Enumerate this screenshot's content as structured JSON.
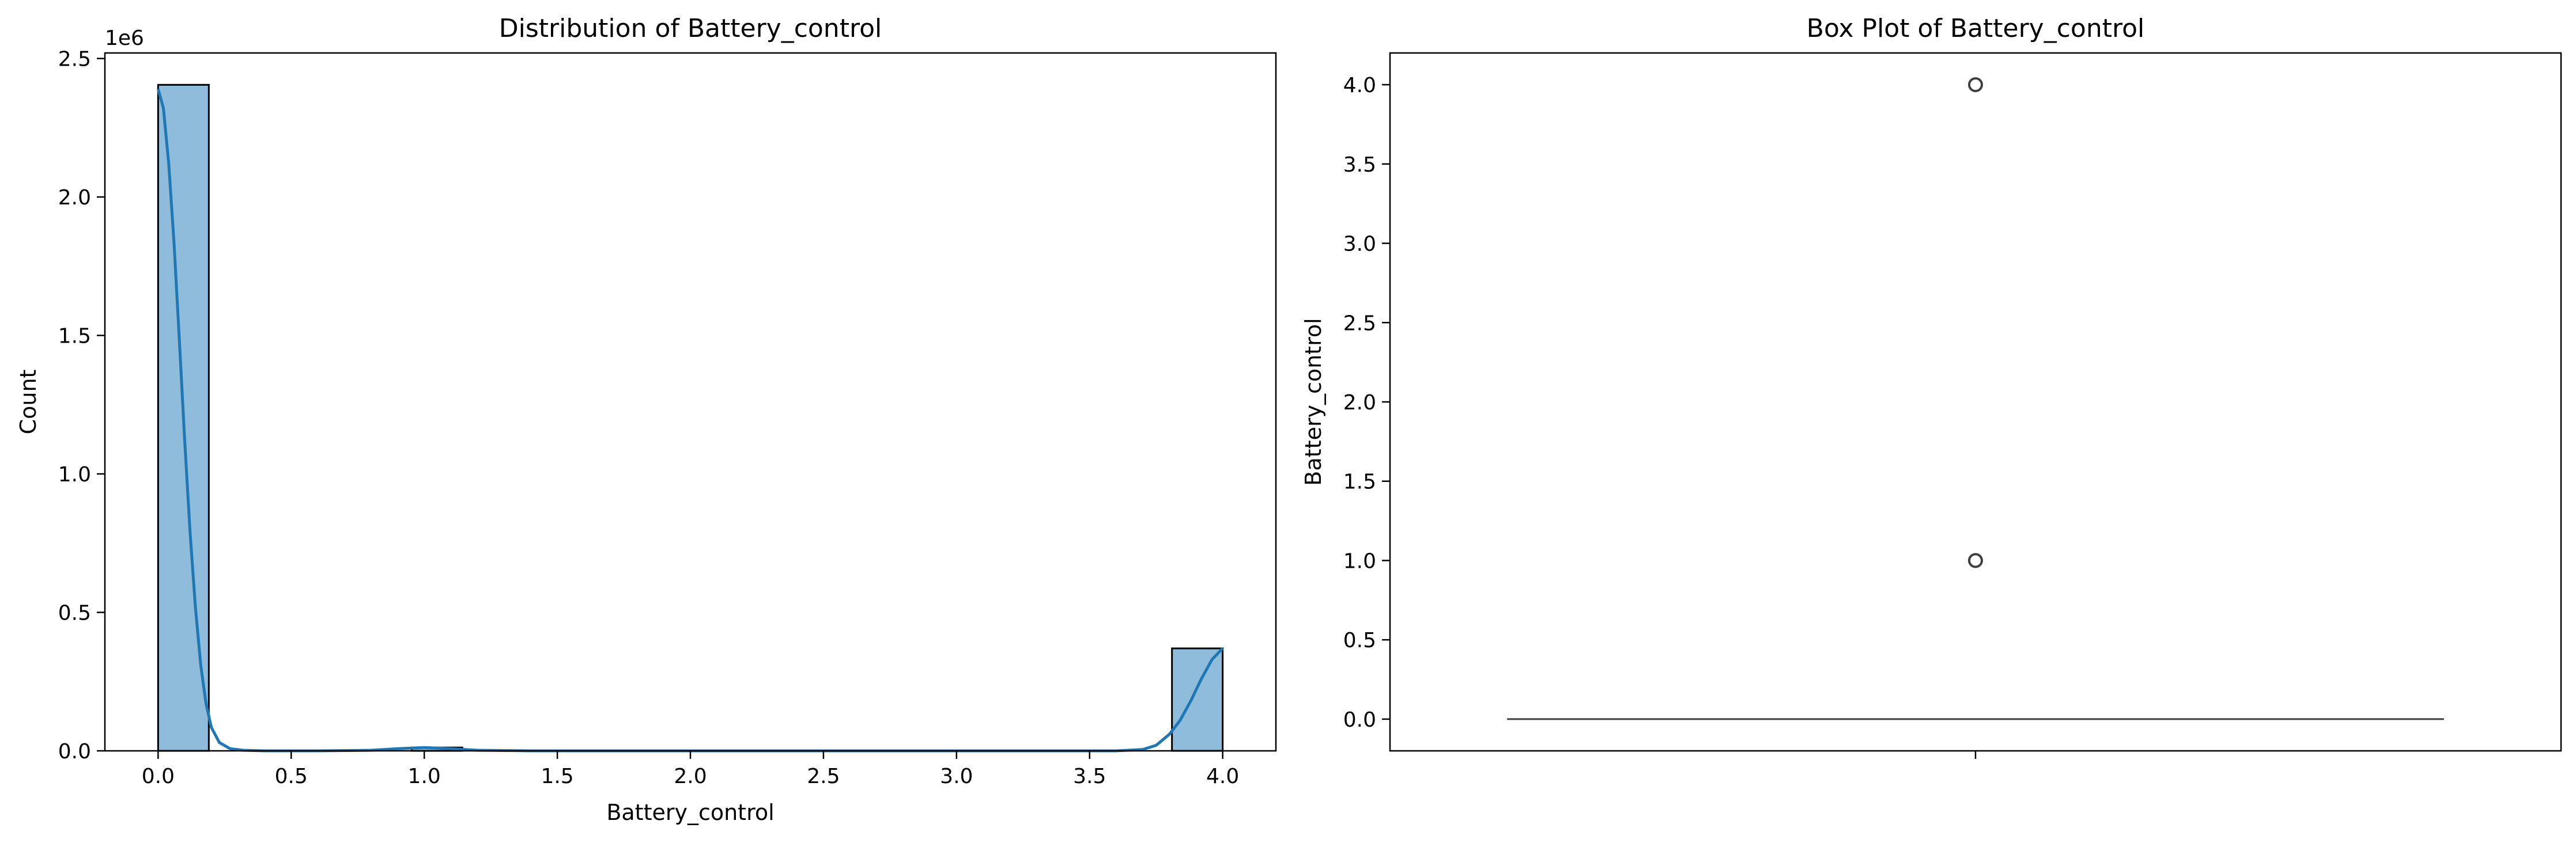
{
  "chart_data": [
    {
      "type": "histogram",
      "title": "Distribution of Battery_control",
      "xlabel": "Battery_control",
      "ylabel": "Count",
      "y_offset_label": "1e6",
      "xlim": [
        -0.2,
        4.2
      ],
      "ylim": [
        0,
        2.52
      ],
      "x_ticks": [
        0.0,
        0.5,
        1.0,
        1.5,
        2.0,
        2.5,
        3.0,
        3.5,
        4.0
      ],
      "x_tick_labels": [
        "0.0",
        "0.5",
        "1.0",
        "1.5",
        "2.0",
        "2.5",
        "3.0",
        "3.5",
        "4.0"
      ],
      "y_ticks": [
        0.0,
        0.5,
        1.0,
        1.5,
        2.0,
        2.5
      ],
      "y_tick_labels": [
        "0.0",
        "0.5",
        "1.0",
        "1.5",
        "2.0",
        "2.5"
      ],
      "bin_width": 0.1905,
      "bins": [
        {
          "x0": 0.0,
          "x1": 0.1905,
          "count": 2.405
        },
        {
          "x0": 0.9524,
          "x1": 1.1429,
          "count": 0.012
        },
        {
          "x0": 3.8095,
          "x1": 4.0,
          "count": 0.37
        }
      ],
      "bar_color": "#8fbcdb",
      "kde_color": "#1f77b4",
      "kde": {
        "x": [
          0.0,
          0.02,
          0.04,
          0.06,
          0.08,
          0.1,
          0.12,
          0.14,
          0.16,
          0.18,
          0.2,
          0.23,
          0.27,
          0.32,
          0.4,
          0.6,
          0.8,
          0.9,
          1.0,
          1.1,
          1.2,
          1.4,
          2.0,
          3.0,
          3.6,
          3.7,
          3.75,
          3.8,
          3.84,
          3.88,
          3.92,
          3.96,
          4.0
        ],
        "y": [
          2.39,
          2.32,
          2.12,
          1.83,
          1.48,
          1.12,
          0.79,
          0.52,
          0.31,
          0.17,
          0.085,
          0.03,
          0.008,
          0.002,
          0.0,
          0.0,
          0.002,
          0.008,
          0.012,
          0.008,
          0.002,
          0.0,
          0.0,
          0.0,
          0.0,
          0.005,
          0.02,
          0.06,
          0.11,
          0.18,
          0.26,
          0.33,
          0.37
        ]
      }
    },
    {
      "type": "box",
      "title": "Box Plot of Battery_control",
      "xlabel": "",
      "ylabel": "Battery_control",
      "ylim": [
        -0.2,
        4.2
      ],
      "y_ticks": [
        0.0,
        0.5,
        1.0,
        1.5,
        2.0,
        2.5,
        3.0,
        3.5,
        4.0
      ],
      "y_tick_labels": [
        "0.0",
        "0.5",
        "1.0",
        "1.5",
        "2.0",
        "2.5",
        "3.0",
        "3.5",
        "4.0"
      ],
      "box": {
        "q1": 0.0,
        "median": 0.0,
        "q3": 0.0,
        "whisker_low": 0.0,
        "whisker_high": 0.0
      },
      "outliers": [
        1.0,
        4.0
      ],
      "line_color": "#3f3f3f"
    }
  ]
}
